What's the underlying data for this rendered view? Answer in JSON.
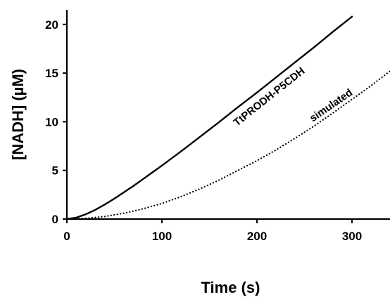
{
  "chart_data": {
    "type": "line",
    "xlabel": "Time (s)",
    "ylabel": "[NADH] (µM)",
    "xlim": [
      0,
      340
    ],
    "ylim": [
      0,
      21.5
    ],
    "x_ticks": [
      0,
      100,
      200,
      300
    ],
    "y_ticks": [
      0,
      5,
      10,
      15,
      20
    ],
    "grid": false,
    "legend": "none",
    "series": [
      {
        "name": "TtPRODH-P5CDH",
        "style": "solid",
        "color": "#000000",
        "x": [
          0,
          10,
          20,
          30,
          40,
          50,
          60,
          70,
          80,
          90,
          100,
          120,
          140,
          160,
          180,
          200,
          220,
          240,
          260,
          280,
          300
        ],
        "y": [
          0,
          0.15,
          0.5,
          0.95,
          1.5,
          2.1,
          2.75,
          3.4,
          4.1,
          4.8,
          5.5,
          6.95,
          8.45,
          9.95,
          11.5,
          13.0,
          14.55,
          16.1,
          17.65,
          19.25,
          20.8
        ]
      },
      {
        "name": "simulated",
        "style": "dotted",
        "color": "#000000",
        "x": [
          0,
          20,
          40,
          60,
          80,
          100,
          120,
          140,
          160,
          180,
          200,
          220,
          240,
          260,
          280,
          300,
          320,
          340
        ],
        "y": [
          0,
          0.07,
          0.27,
          0.6,
          1.05,
          1.6,
          2.3,
          3.1,
          4.0,
          5.0,
          6.0,
          7.1,
          8.3,
          9.55,
          10.9,
          12.3,
          13.7,
          15.2
        ]
      }
    ],
    "annotations": [
      {
        "text": "TtPRODH-P5CDH",
        "series": "TtPRODH-P5CDH",
        "anchor_x": 215,
        "anchor_y": 12.3
      },
      {
        "text": "simulated",
        "series": "simulated",
        "anchor_x": 280,
        "anchor_y": 11.4
      }
    ]
  }
}
